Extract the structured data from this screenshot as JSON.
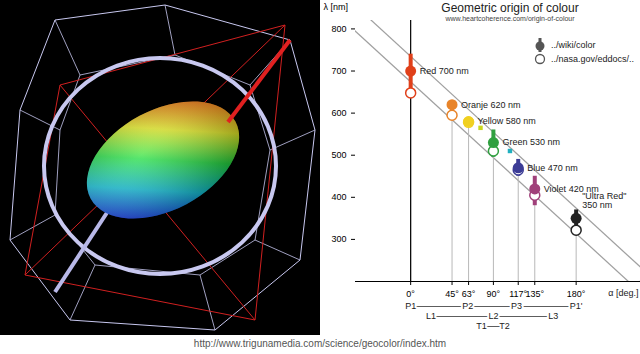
{
  "chart_data": {
    "type": "scatter",
    "title": "Geometric origin of colour",
    "subtitle": "www.heartcoherence.com/origin-of-colour",
    "caption": "http://www.trigunamedia.com/science/geocolor/index.htm",
    "x_label": "α [deg.]",
    "y_label": "λ [nm]",
    "x": [
      0,
      45,
      63,
      90,
      117,
      135,
      180
    ],
    "point_labels": [
      "Red 700 nm",
      "Oranje 620 nm",
      "Yellow 580 nm",
      "Green 530 nm",
      "Blue 470 nm",
      "Violet 420 nm",
      "\"Ultra Red\"\n350 nm"
    ],
    "colors": [
      "#e0401a",
      "#e8842a",
      "#f0d020",
      "#30a040",
      "#3c3c96",
      "#a0407a",
      "#222222"
    ],
    "series": [
      {
        "name": "../wiki/color",
        "marker": "filled",
        "values": [
          700,
          620,
          580,
          530,
          470,
          420,
          350
        ],
        "low": [
          650,
          595,
          570,
          495,
          450,
          380,
          330
        ],
        "high": [
          740,
          625,
          590,
          560,
          490,
          450,
          370
        ]
      },
      {
        "name": "../nasa.gov/eddocs/..",
        "marker": "open",
        "values": [
          648,
          595,
          578,
          510,
          465,
          405,
          322
        ]
      }
    ],
    "markers": [
      {
        "x": 76,
        "y": 565,
        "color": "#c8d820",
        "marker": "square"
      },
      {
        "x": 108,
        "y": 510,
        "color": "#20b0c0",
        "marker": "square"
      }
    ],
    "annotation_rows": [
      [
        {
          "text": "P1",
          "x": 0
        },
        {
          "text": "P2",
          "x": 62
        },
        {
          "text": "P3",
          "x": 115
        },
        {
          "text": "P1'",
          "x": 180
        }
      ],
      [
        {
          "text": "L1",
          "x": 22
        },
        {
          "text": "L2",
          "x": 90
        },
        {
          "text": "L3",
          "x": 155
        }
      ],
      [
        {
          "text": "T1",
          "x": 77
        },
        {
          "text": "T2",
          "x": 102
        }
      ]
    ],
    "xlim": [
      -60,
      250
    ],
    "ylim": [
      200,
      820
    ],
    "xticks": [
      {
        "value": 0,
        "label": "0°"
      },
      {
        "value": 45,
        "label": "45°"
      },
      {
        "value": 63,
        "label": "63°"
      },
      {
        "value": 90,
        "label": "90°"
      },
      {
        "value": 117,
        "label": "117°"
      },
      {
        "value": 135,
        "label": "135°"
      },
      {
        "value": 180,
        "label": "180°"
      }
    ],
    "yticks": [
      300,
      400,
      500,
      600,
      700,
      800
    ],
    "legend": "top-right"
  }
}
